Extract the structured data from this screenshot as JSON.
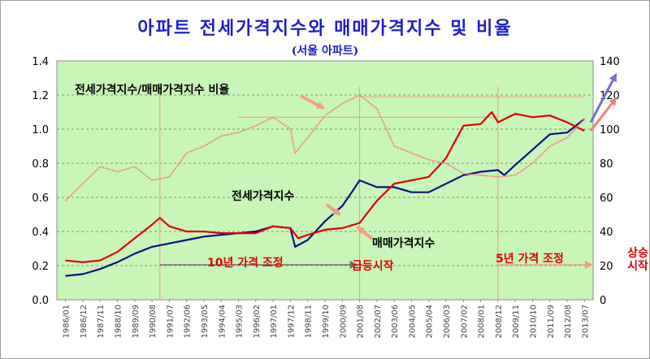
{
  "chart_data": {
    "type": "line",
    "title": "아파트 전세가격지수와 매매가격지수 및 비율",
    "subtitle": "(서울 아파트)",
    "colors": {
      "title": "#1f1fc8",
      "plot_bg": "#c8f5b8",
      "jeonse": "#10107e",
      "maemae": "#e00000",
      "ratio": "#f08080",
      "guide": "#e8a070",
      "annot_arrow": "#f0a080",
      "annot_red": "#e00000",
      "up_arrow_blue": "#7070d8",
      "up_arrow_red": "#f08080"
    },
    "x_tick_labels": [
      "1986/01",
      "1986/12",
      "1987/11",
      "1988/10",
      "1989/09",
      "1990/08",
      "1991/07",
      "1992/06",
      "1993/05",
      "1994/04",
      "1995/03",
      "1996/02",
      "1997/01",
      "1997/12",
      "1998/11",
      "1999/10",
      "2000/09",
      "2001/08",
      "2002/07",
      "2003/06",
      "2004/05",
      "2005/04",
      "2006/03",
      "2007/02",
      "2008/01",
      "2008/12",
      "2009/11",
      "2010/10",
      "2011/09",
      "2012/08",
      "2013/07"
    ],
    "y_left": {
      "min": 0.0,
      "max": 1.4,
      "ticks": [
        "0.0",
        "0.2",
        "0.4",
        "0.6",
        "0.8",
        "1.0",
        "1.2",
        "1.4"
      ]
    },
    "y_right": {
      "min": 0,
      "max": 140,
      "ticks": [
        "0",
        "20",
        "40",
        "60",
        "80",
        "100",
        "120",
        "140"
      ]
    },
    "grid": "horizontal dashed",
    "series": [
      {
        "name": "전세가격지수",
        "axis": "right",
        "points": [
          [
            "1986/01",
            14
          ],
          [
            "1986/12",
            15
          ],
          [
            "1987/11",
            18
          ],
          [
            "1988/10",
            22
          ],
          [
            "1989/09",
            27
          ],
          [
            "1990/08",
            31
          ],
          [
            "1991/07",
            33
          ],
          [
            "1992/06",
            35
          ],
          [
            "1993/05",
            37
          ],
          [
            "1994/04",
            38
          ],
          [
            "1995/03",
            39
          ],
          [
            "1996/02",
            40
          ],
          [
            "1997/01",
            43
          ],
          [
            "1997/12",
            42
          ],
          [
            "1998/03",
            31
          ],
          [
            "1998/11",
            35
          ],
          [
            "1999/10",
            46
          ],
          [
            "2000/09",
            55
          ],
          [
            "2001/03",
            63
          ],
          [
            "2001/08",
            70
          ],
          [
            "2002/07",
            66
          ],
          [
            "2003/06",
            66
          ],
          [
            "2004/05",
            63
          ],
          [
            "2005/04",
            63
          ],
          [
            "2006/03",
            68
          ],
          [
            "2007/02",
            73
          ],
          [
            "2008/01",
            75
          ],
          [
            "2008/12",
            76
          ],
          [
            "2009/04",
            73
          ],
          [
            "2009/11",
            79
          ],
          [
            "2010/10",
            88
          ],
          [
            "2011/09",
            97
          ],
          [
            "2012/08",
            98
          ],
          [
            "2013/07",
            106
          ]
        ]
      },
      {
        "name": "매매가격지수",
        "axis": "right",
        "points": [
          [
            "1986/01",
            23
          ],
          [
            "1986/12",
            22
          ],
          [
            "1987/11",
            23
          ],
          [
            "1988/10",
            28
          ],
          [
            "1989/09",
            36
          ],
          [
            "1990/08",
            44
          ],
          [
            "1991/01",
            48
          ],
          [
            "1991/07",
            43
          ],
          [
            "1992/06",
            40
          ],
          [
            "1993/05",
            40
          ],
          [
            "1994/04",
            39
          ],
          [
            "1995/03",
            39
          ],
          [
            "1996/02",
            39
          ],
          [
            "1997/01",
            43
          ],
          [
            "1997/12",
            42
          ],
          [
            "1998/05",
            36
          ],
          [
            "1998/11",
            38
          ],
          [
            "1999/10",
            41
          ],
          [
            "2000/09",
            42
          ],
          [
            "2001/08",
            45
          ],
          [
            "2002/07",
            58
          ],
          [
            "2003/06",
            68
          ],
          [
            "2004/05",
            70
          ],
          [
            "2005/04",
            72
          ],
          [
            "2006/03",
            83
          ],
          [
            "2007/02",
            102
          ],
          [
            "2008/01",
            103
          ],
          [
            "2008/08",
            110
          ],
          [
            "2008/12",
            104
          ],
          [
            "2009/11",
            109
          ],
          [
            "2010/10",
            107
          ],
          [
            "2011/09",
            108
          ],
          [
            "2012/08",
            104
          ],
          [
            "2013/07",
            99
          ]
        ]
      },
      {
        "name": "전세가격지수/매매가격지수 비율",
        "axis": "left",
        "points": [
          [
            "1986/01",
            0.58
          ],
          [
            "1986/12",
            0.68
          ],
          [
            "1987/11",
            0.78
          ],
          [
            "1988/10",
            0.75
          ],
          [
            "1989/09",
            0.78
          ],
          [
            "1990/08",
            0.7
          ],
          [
            "1991/07",
            0.72
          ],
          [
            "1992/06",
            0.86
          ],
          [
            "1993/05",
            0.9
          ],
          [
            "1994/04",
            0.96
          ],
          [
            "1995/03",
            0.98
          ],
          [
            "1996/02",
            1.02
          ],
          [
            "1997/01",
            1.07
          ],
          [
            "1997/12",
            1.0
          ],
          [
            "1998/03",
            0.86
          ],
          [
            "1998/11",
            0.95
          ],
          [
            "1999/10",
            1.08
          ],
          [
            "2000/09",
            1.15
          ],
          [
            "2001/08",
            1.2
          ],
          [
            "2002/07",
            1.12
          ],
          [
            "2003/06",
            0.9
          ],
          [
            "2004/05",
            0.86
          ],
          [
            "2005/04",
            0.82
          ],
          [
            "2006/03",
            0.8
          ],
          [
            "2007/02",
            0.74
          ],
          [
            "2008/01",
            0.73
          ],
          [
            "2008/12",
            0.72
          ],
          [
            "2009/11",
            0.73
          ],
          [
            "2010/10",
            0.8
          ],
          [
            "2011/09",
            0.9
          ],
          [
            "2012/08",
            0.95
          ],
          [
            "2013/07",
            1.06
          ]
        ]
      }
    ],
    "annotations": {
      "ratio_label": "전세가격지수/매매가격지수 비율",
      "jeonse_label": "전세가격지수",
      "maemae_label": "매매가격지수",
      "adjust10": "10년 가격 조정",
      "surge": "급등시작",
      "adjust5": "5년 가격 조정",
      "rise": "상승시작"
    },
    "vertical_markers": [
      "1991/01",
      "2001/08",
      "2008/12"
    ],
    "horizontal_markers": [
      {
        "value": 1.07,
        "from": "1995/03",
        "to": "2008/12"
      },
      {
        "value": 1.19,
        "from": "2001/08",
        "to": "2013/07"
      }
    ]
  }
}
